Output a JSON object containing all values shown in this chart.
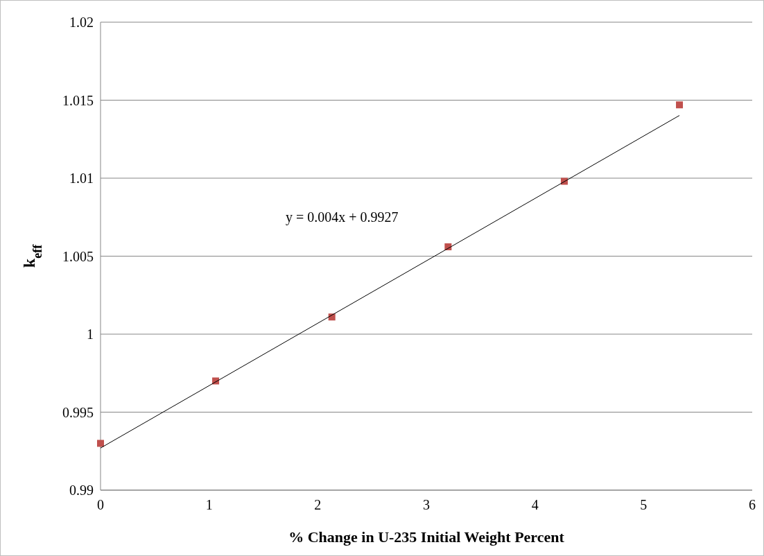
{
  "chart_data": {
    "type": "scatter",
    "xlabel": "% Change in U-235 Initial Weight Percent",
    "ylabel": "k$_{eff}$",
    "annotations": [
      "y = 0.004x + 0.9927"
    ],
    "series": [
      {
        "type": "scatter",
        "color": "#c0504d",
        "marker": "square",
        "x": [
          0,
          1.06,
          2.13,
          3.2,
          4.27,
          5.33
        ],
        "values": [
          0.993,
          0.997,
          1.0011,
          1.0056,
          1.0098,
          1.0147
        ]
      },
      {
        "type": "line",
        "color": "#000000",
        "marker": "none",
        "line_style": "solid",
        "x": [
          0,
          5.33
        ],
        "values": [
          0.9927,
          1.01402
        ]
      }
    ],
    "xlim": [
      0,
      6
    ],
    "xticks": [
      0,
      1,
      2,
      3,
      4,
      5,
      6
    ],
    "ylim": [
      0.99,
      1.02
    ],
    "yticks": [
      0.99,
      0.995,
      1,
      1.005,
      1.01,
      1.015,
      1.02
    ],
    "grid": "y"
  }
}
